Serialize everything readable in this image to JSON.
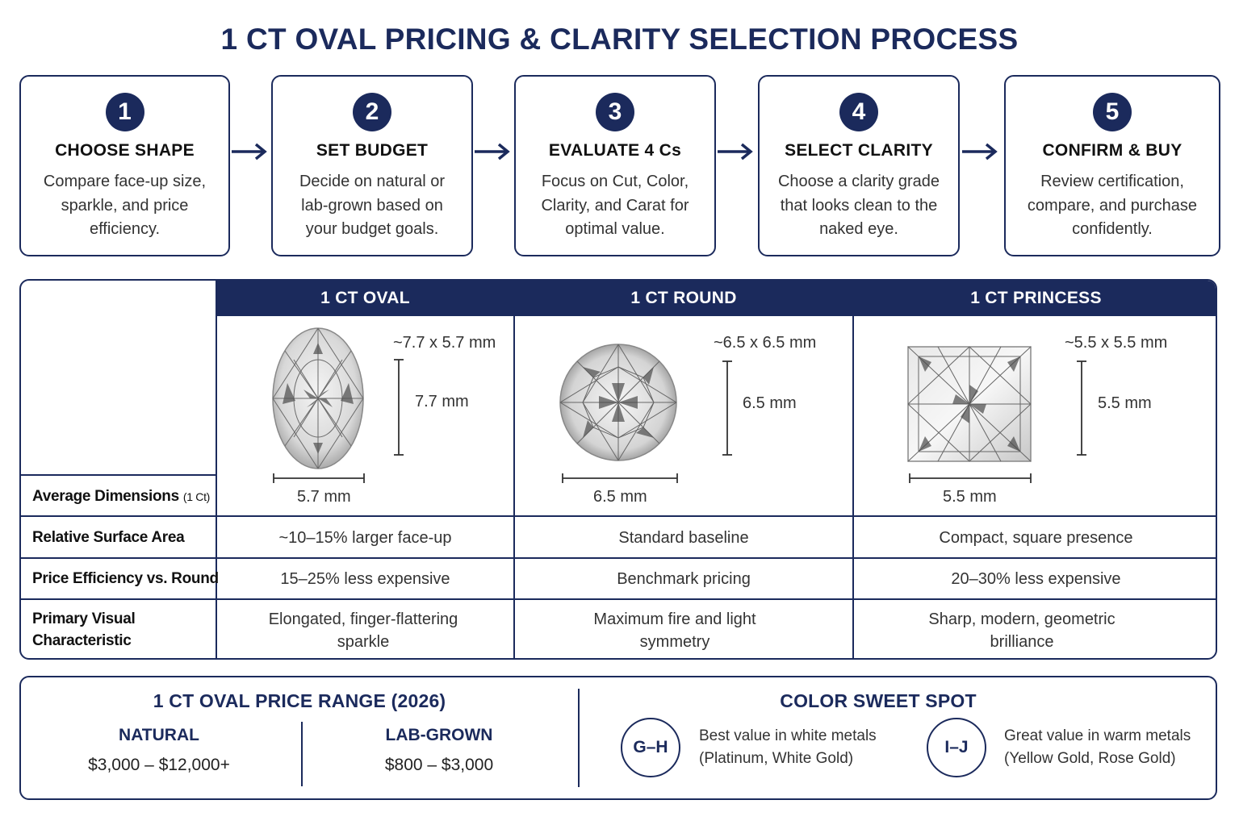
{
  "title": "1 CT OVAL PRICING & CLARITY SELECTION PROCESS",
  "steps": [
    {
      "num": "1",
      "title": "CHOOSE SHAPE",
      "desc": "Compare face-up size, sparkle, and price efficiency."
    },
    {
      "num": "2",
      "title": "SET BUDGET",
      "desc": "Decide on natural or lab-grown based on your budget goals."
    },
    {
      "num": "3",
      "title": "EVALUATE 4 Cs",
      "desc": "Focus on Cut, Color, Clarity, and Carat for optimal value."
    },
    {
      "num": "4",
      "title": "SELECT CLARITY",
      "desc": "Choose a clarity grade that looks clean to the naked eye."
    },
    {
      "num": "5",
      "title": "CONFIRM & BUY",
      "desc": "Review certification, compare, and purchase confidently."
    }
  ],
  "comparison": {
    "columns": [
      "1 CT OVAL",
      "1 CT ROUND",
      "1 CT PRINCESS"
    ],
    "dimension_label": "Average Dimensions",
    "dimension_label_note": "(1 Ct)",
    "dimensions": [
      {
        "overall": "~7.7 x 5.7 mm",
        "height": "7.7 mm",
        "width": "5.7 mm"
      },
      {
        "overall": "~6.5 x 6.5 mm",
        "height": "6.5 mm",
        "width": "6.5 mm"
      },
      {
        "overall": "~5.5 x 5.5 mm",
        "height": "5.5 mm",
        "width": "5.5 mm"
      }
    ],
    "rows": [
      {
        "label": "Relative Surface Area",
        "values": [
          "~10–15% larger face-up",
          "Standard baseline",
          "Compact, square presence"
        ]
      },
      {
        "label": "Price Efficiency vs. Round",
        "values": [
          "15–25% less expensive",
          "Benchmark pricing",
          "20–30% less expensive"
        ]
      },
      {
        "label": "Primary Visual Characteristic",
        "values": [
          "Elongated, finger-flattering sparkle",
          "Maximum fire and light symmetry",
          "Sharp, modern, geometric brilliance"
        ]
      }
    ]
  },
  "price_range": {
    "title": "1 CT OVAL PRICE RANGE (2026)",
    "natural_label": "NATURAL",
    "natural_value": "$3,000 – $12,000+",
    "lab_label": "LAB-GROWN",
    "lab_value": "$800 – $3,000"
  },
  "color_sweet_spot": {
    "title": "COLOR SWEET SPOT",
    "items": [
      {
        "grade": "G–H",
        "line1": "Best value in white metals",
        "line2": "(Platinum, White Gold)"
      },
      {
        "grade": "I–J",
        "line1": "Great value in warm metals",
        "line2": "(Yellow Gold, Rose Gold)"
      }
    ]
  },
  "colors": {
    "navy": "#1b2a5c"
  },
  "icons": {
    "gems": [
      "oval-diamond-icon",
      "round-diamond-icon",
      "princess-diamond-icon"
    ],
    "arrows": "right-arrow-icon"
  }
}
